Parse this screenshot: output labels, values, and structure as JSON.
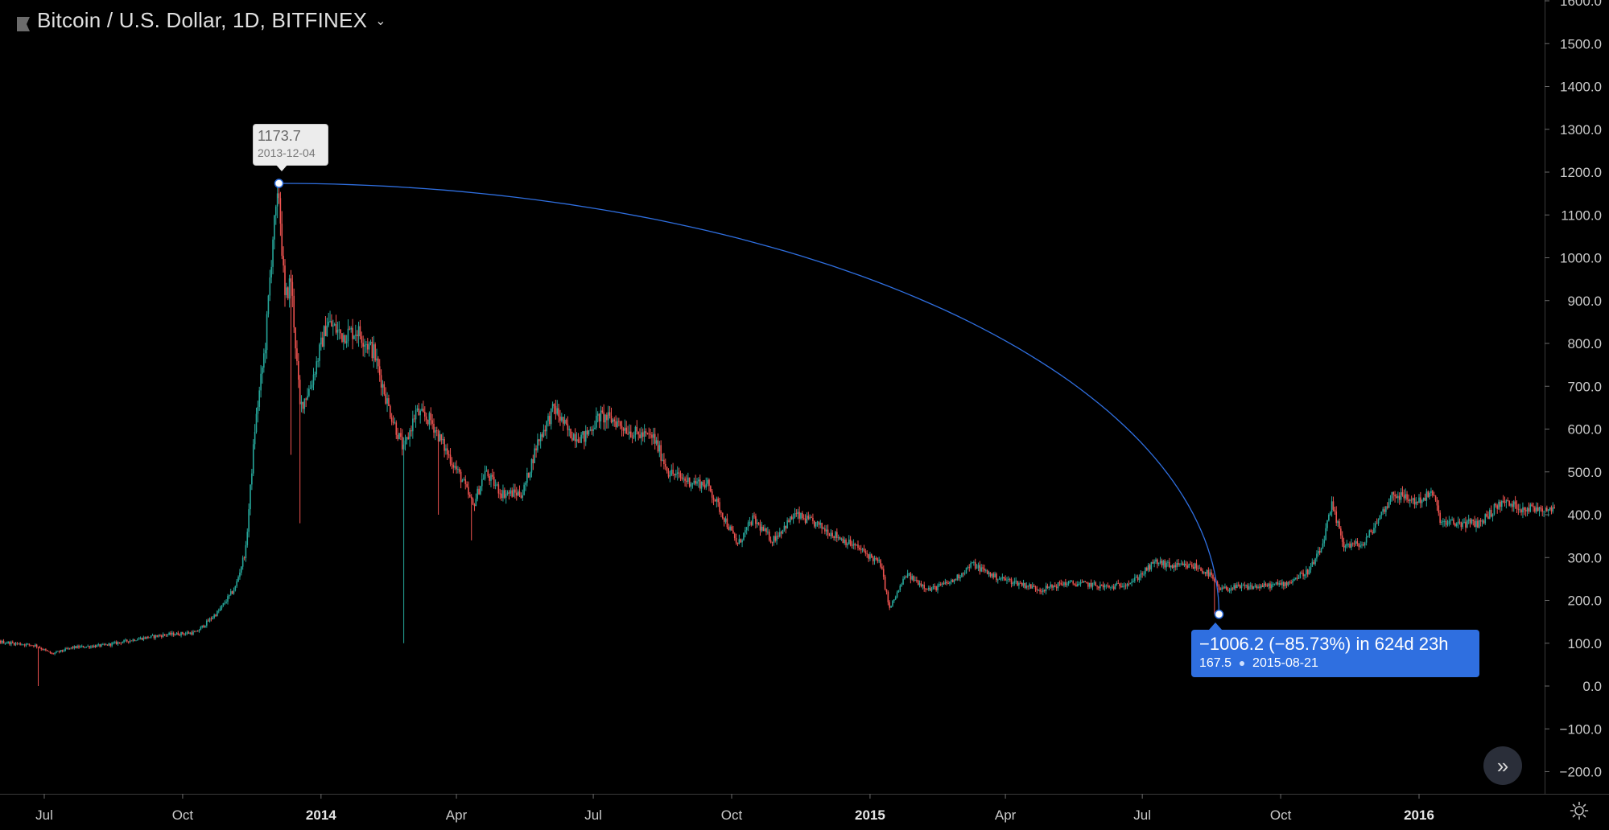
{
  "header": {
    "title": "Bitcoin / U.S. Dollar, 1D, BITFINEX"
  },
  "measure": {
    "start_price": "1173.7",
    "start_date": "2013-12-04",
    "change_text": "−1006.2 (−85.73%) in 624d 23h",
    "end_price": "167.5",
    "end_date": "2015-08-21"
  },
  "colors": {
    "up": "#26a69a",
    "down": "#ef5350",
    "measure_line": "#2f6fe0",
    "background": "#000000"
  },
  "icons": {
    "symbol": "flag-icon",
    "scroll": "double-chevron-right-icon",
    "settings": "gear-icon"
  },
  "chart_data": {
    "type": "candlestick",
    "title": "Bitcoin / U.S. Dollar, 1D, BITFINEX",
    "x_range": [
      "2013-05-01",
      "2016-03-31"
    ],
    "ylim": [
      -240,
      1600
    ],
    "y_ticks": [
      1600,
      1500,
      1400,
      1300,
      1200,
      1100,
      1000,
      900,
      800,
      700,
      600,
      500,
      400,
      300,
      200,
      100,
      0,
      -100,
      -200
    ],
    "y_tick_labels": [
      "1600.0",
      "1500.0",
      "1400.0",
      "1300.0",
      "1200.0",
      "1100.0",
      "1000.0",
      "900.0",
      "800.0",
      "700.0",
      "600.0",
      "500.0",
      "400.0",
      "300.0",
      "200.0",
      "100.0",
      "0.0",
      "−100.0",
      "−200.0"
    ],
    "x_ticks": [
      {
        "label": "Jul",
        "date": "2013-07-01",
        "bold": false
      },
      {
        "label": "Oct",
        "date": "2013-10-01",
        "bold": false
      },
      {
        "label": "2014",
        "date": "2014-01-01",
        "bold": true
      },
      {
        "label": "Apr",
        "date": "2014-04-01",
        "bold": false
      },
      {
        "label": "Jul",
        "date": "2014-07-01",
        "bold": false
      },
      {
        "label": "Oct",
        "date": "2014-10-01",
        "bold": false
      },
      {
        "label": "2015",
        "date": "2015-01-01",
        "bold": true
      },
      {
        "label": "Apr",
        "date": "2015-04-01",
        "bold": false
      },
      {
        "label": "Jul",
        "date": "2015-07-01",
        "bold": false
      },
      {
        "label": "Oct",
        "date": "2015-10-01",
        "bold": false
      },
      {
        "label": "2016",
        "date": "2016-01-01",
        "bold": true
      }
    ],
    "price_path": [
      [
        "2013-05-01",
        115
      ],
      [
        "2013-05-20",
        108
      ],
      [
        "2013-06-10",
        100
      ],
      [
        "2013-06-25",
        95
      ],
      [
        "2013-07-06",
        75
      ],
      [
        "2013-07-20",
        90
      ],
      [
        "2013-08-10",
        95
      ],
      [
        "2013-09-01",
        110
      ],
      [
        "2013-09-20",
        120
      ],
      [
        "2013-10-10",
        125
      ],
      [
        "2013-10-25",
        175
      ],
      [
        "2013-11-05",
        230
      ],
      [
        "2013-11-12",
        320
      ],
      [
        "2013-11-18",
        600
      ],
      [
        "2013-11-25",
        800
      ],
      [
        "2013-11-30",
        1050
      ],
      [
        "2013-12-04",
        1150
      ],
      [
        "2013-12-08",
        900
      ],
      [
        "2013-12-12",
        950
      ],
      [
        "2013-12-18",
        650
      ],
      [
        "2013-12-25",
        700
      ],
      [
        "2014-01-05",
        850
      ],
      [
        "2014-01-15",
        820
      ],
      [
        "2014-01-25",
        830
      ],
      [
        "2014-02-05",
        780
      ],
      [
        "2014-02-15",
        650
      ],
      [
        "2014-02-25",
        550
      ],
      [
        "2014-03-05",
        640
      ],
      [
        "2014-03-15",
        620
      ],
      [
        "2014-03-25",
        550
      ],
      [
        "2014-04-05",
        480
      ],
      [
        "2014-04-12",
        420
      ],
      [
        "2014-04-20",
        500
      ],
      [
        "2014-05-01",
        450
      ],
      [
        "2014-05-15",
        450
      ],
      [
        "2014-05-25",
        570
      ],
      [
        "2014-06-05",
        650
      ],
      [
        "2014-06-15",
        590
      ],
      [
        "2014-06-25",
        580
      ],
      [
        "2014-07-05",
        630
      ],
      [
        "2014-07-15",
        620
      ],
      [
        "2014-07-28",
        590
      ],
      [
        "2014-08-10",
        580
      ],
      [
        "2014-08-20",
        500
      ],
      [
        "2014-09-01",
        480
      ],
      [
        "2014-09-15",
        470
      ],
      [
        "2014-09-25",
        400
      ],
      [
        "2014-10-05",
        330
      ],
      [
        "2014-10-15",
        390
      ],
      [
        "2014-10-28",
        340
      ],
      [
        "2014-11-12",
        400
      ],
      [
        "2014-11-25",
        380
      ],
      [
        "2014-12-10",
        350
      ],
      [
        "2014-12-25",
        320
      ],
      [
        "2015-01-08",
        285
      ],
      [
        "2015-01-14",
        180
      ],
      [
        "2015-01-25",
        260
      ],
      [
        "2015-02-10",
        225
      ],
      [
        "2015-02-25",
        245
      ],
      [
        "2015-03-10",
        285
      ],
      [
        "2015-03-25",
        255
      ],
      [
        "2015-04-10",
        240
      ],
      [
        "2015-04-25",
        225
      ],
      [
        "2015-05-10",
        240
      ],
      [
        "2015-05-25",
        238
      ],
      [
        "2015-06-10",
        230
      ],
      [
        "2015-06-25",
        245
      ],
      [
        "2015-07-10",
        290
      ],
      [
        "2015-07-20",
        280
      ],
      [
        "2015-08-05",
        280
      ],
      [
        "2015-08-15",
        260
      ],
      [
        "2015-08-21",
        225
      ],
      [
        "2015-09-01",
        230
      ],
      [
        "2015-09-20",
        233
      ],
      [
        "2015-10-05",
        240
      ],
      [
        "2015-10-20",
        270
      ],
      [
        "2015-10-28",
        320
      ],
      [
        "2015-11-04",
        420
      ],
      [
        "2015-11-12",
        330
      ],
      [
        "2015-11-25",
        330
      ],
      [
        "2015-12-05",
        390
      ],
      [
        "2015-12-15",
        450
      ],
      [
        "2015-12-30",
        430
      ],
      [
        "2016-01-10",
        450
      ],
      [
        "2016-01-16",
        380
      ],
      [
        "2016-01-28",
        380
      ],
      [
        "2016-02-10",
        380
      ],
      [
        "2016-02-25",
        430
      ],
      [
        "2016-03-10",
        415
      ],
      [
        "2016-03-31",
        415
      ]
    ],
    "spikes": [
      {
        "date": "2013-06-27",
        "low": 0
      },
      {
        "date": "2013-12-12",
        "low": 540
      },
      {
        "date": "2013-12-18",
        "low": 380
      },
      {
        "date": "2014-02-25",
        "low": 100
      },
      {
        "date": "2014-03-20",
        "low": 400
      },
      {
        "date": "2014-04-11",
        "low": 340
      },
      {
        "date": "2015-08-18",
        "low": 167.5
      }
    ],
    "measure": {
      "from": {
        "date": "2013-12-04",
        "price": 1173.7
      },
      "to": {
        "date": "2015-08-21",
        "price": 167.5
      }
    }
  }
}
